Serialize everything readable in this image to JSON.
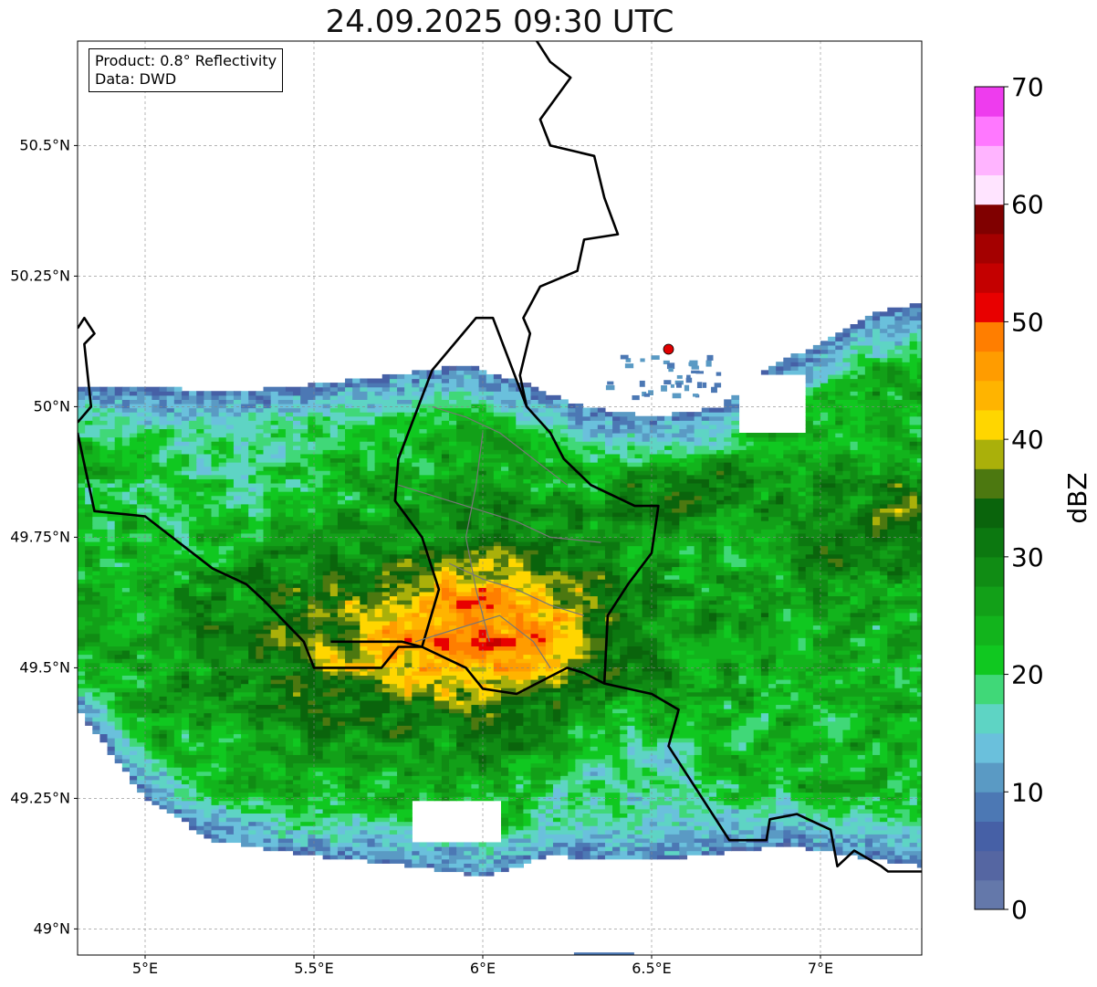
{
  "title": "24.09.2025 09:30 UTC",
  "info": {
    "product_line": "Product: 0.8° Reflectivity",
    "data_line": "Data: DWD"
  },
  "map": {
    "lon_range": [
      4.8,
      7.3
    ],
    "lat_range": [
      48.95,
      50.7
    ],
    "lon_ticks": [
      {
        "value": 5.0,
        "label": "5°E"
      },
      {
        "value": 5.5,
        "label": "5.5°E"
      },
      {
        "value": 6.0,
        "label": "6°E"
      },
      {
        "value": 6.5,
        "label": "6.5°E"
      },
      {
        "value": 7.0,
        "label": "7°E"
      }
    ],
    "lat_ticks": [
      {
        "value": 49.0,
        "label": "49°N"
      },
      {
        "value": 49.25,
        "label": "49.25°N"
      },
      {
        "value": 49.5,
        "label": "49.5°N"
      },
      {
        "value": 49.75,
        "label": "49.75°N"
      },
      {
        "value": 50.0,
        "label": "50°N"
      },
      {
        "value": 50.25,
        "label": "50.25°N"
      },
      {
        "value": 50.5,
        "label": "50.5°N"
      }
    ],
    "grid": true,
    "radar_site": {
      "lon": 6.55,
      "lat": 50.11,
      "color": "#e00000"
    }
  },
  "colorbar": {
    "label": "dBZ",
    "min": 0,
    "max": 70,
    "ticks": [
      {
        "value": 0,
        "label": "0"
      },
      {
        "value": 10,
        "label": "10"
      },
      {
        "value": 20,
        "label": "20"
      },
      {
        "value": 30,
        "label": "30"
      },
      {
        "value": 40,
        "label": "40"
      },
      {
        "value": 50,
        "label": "50"
      },
      {
        "value": 60,
        "label": "60"
      },
      {
        "value": 70,
        "label": "70"
      }
    ],
    "colors": [
      "#6478aa",
      "#5566a2",
      "#4660a6",
      "#4c78b4",
      "#5a9ac4",
      "#6ac0dc",
      "#5ed4c4",
      "#40d878",
      "#10c820",
      "#12b41c",
      "#12a018",
      "#108c14",
      "#0c7810",
      "#0a640c",
      "#4c7810",
      "#aab00a",
      "#ffd600",
      "#ffb400",
      "#ff9c00",
      "#ff7e00",
      "#e80000",
      "#c40000",
      "#a40000",
      "#800000",
      "#ffe4ff",
      "#ffb4ff",
      "#ff78ff",
      "#ee3cee"
    ]
  }
}
